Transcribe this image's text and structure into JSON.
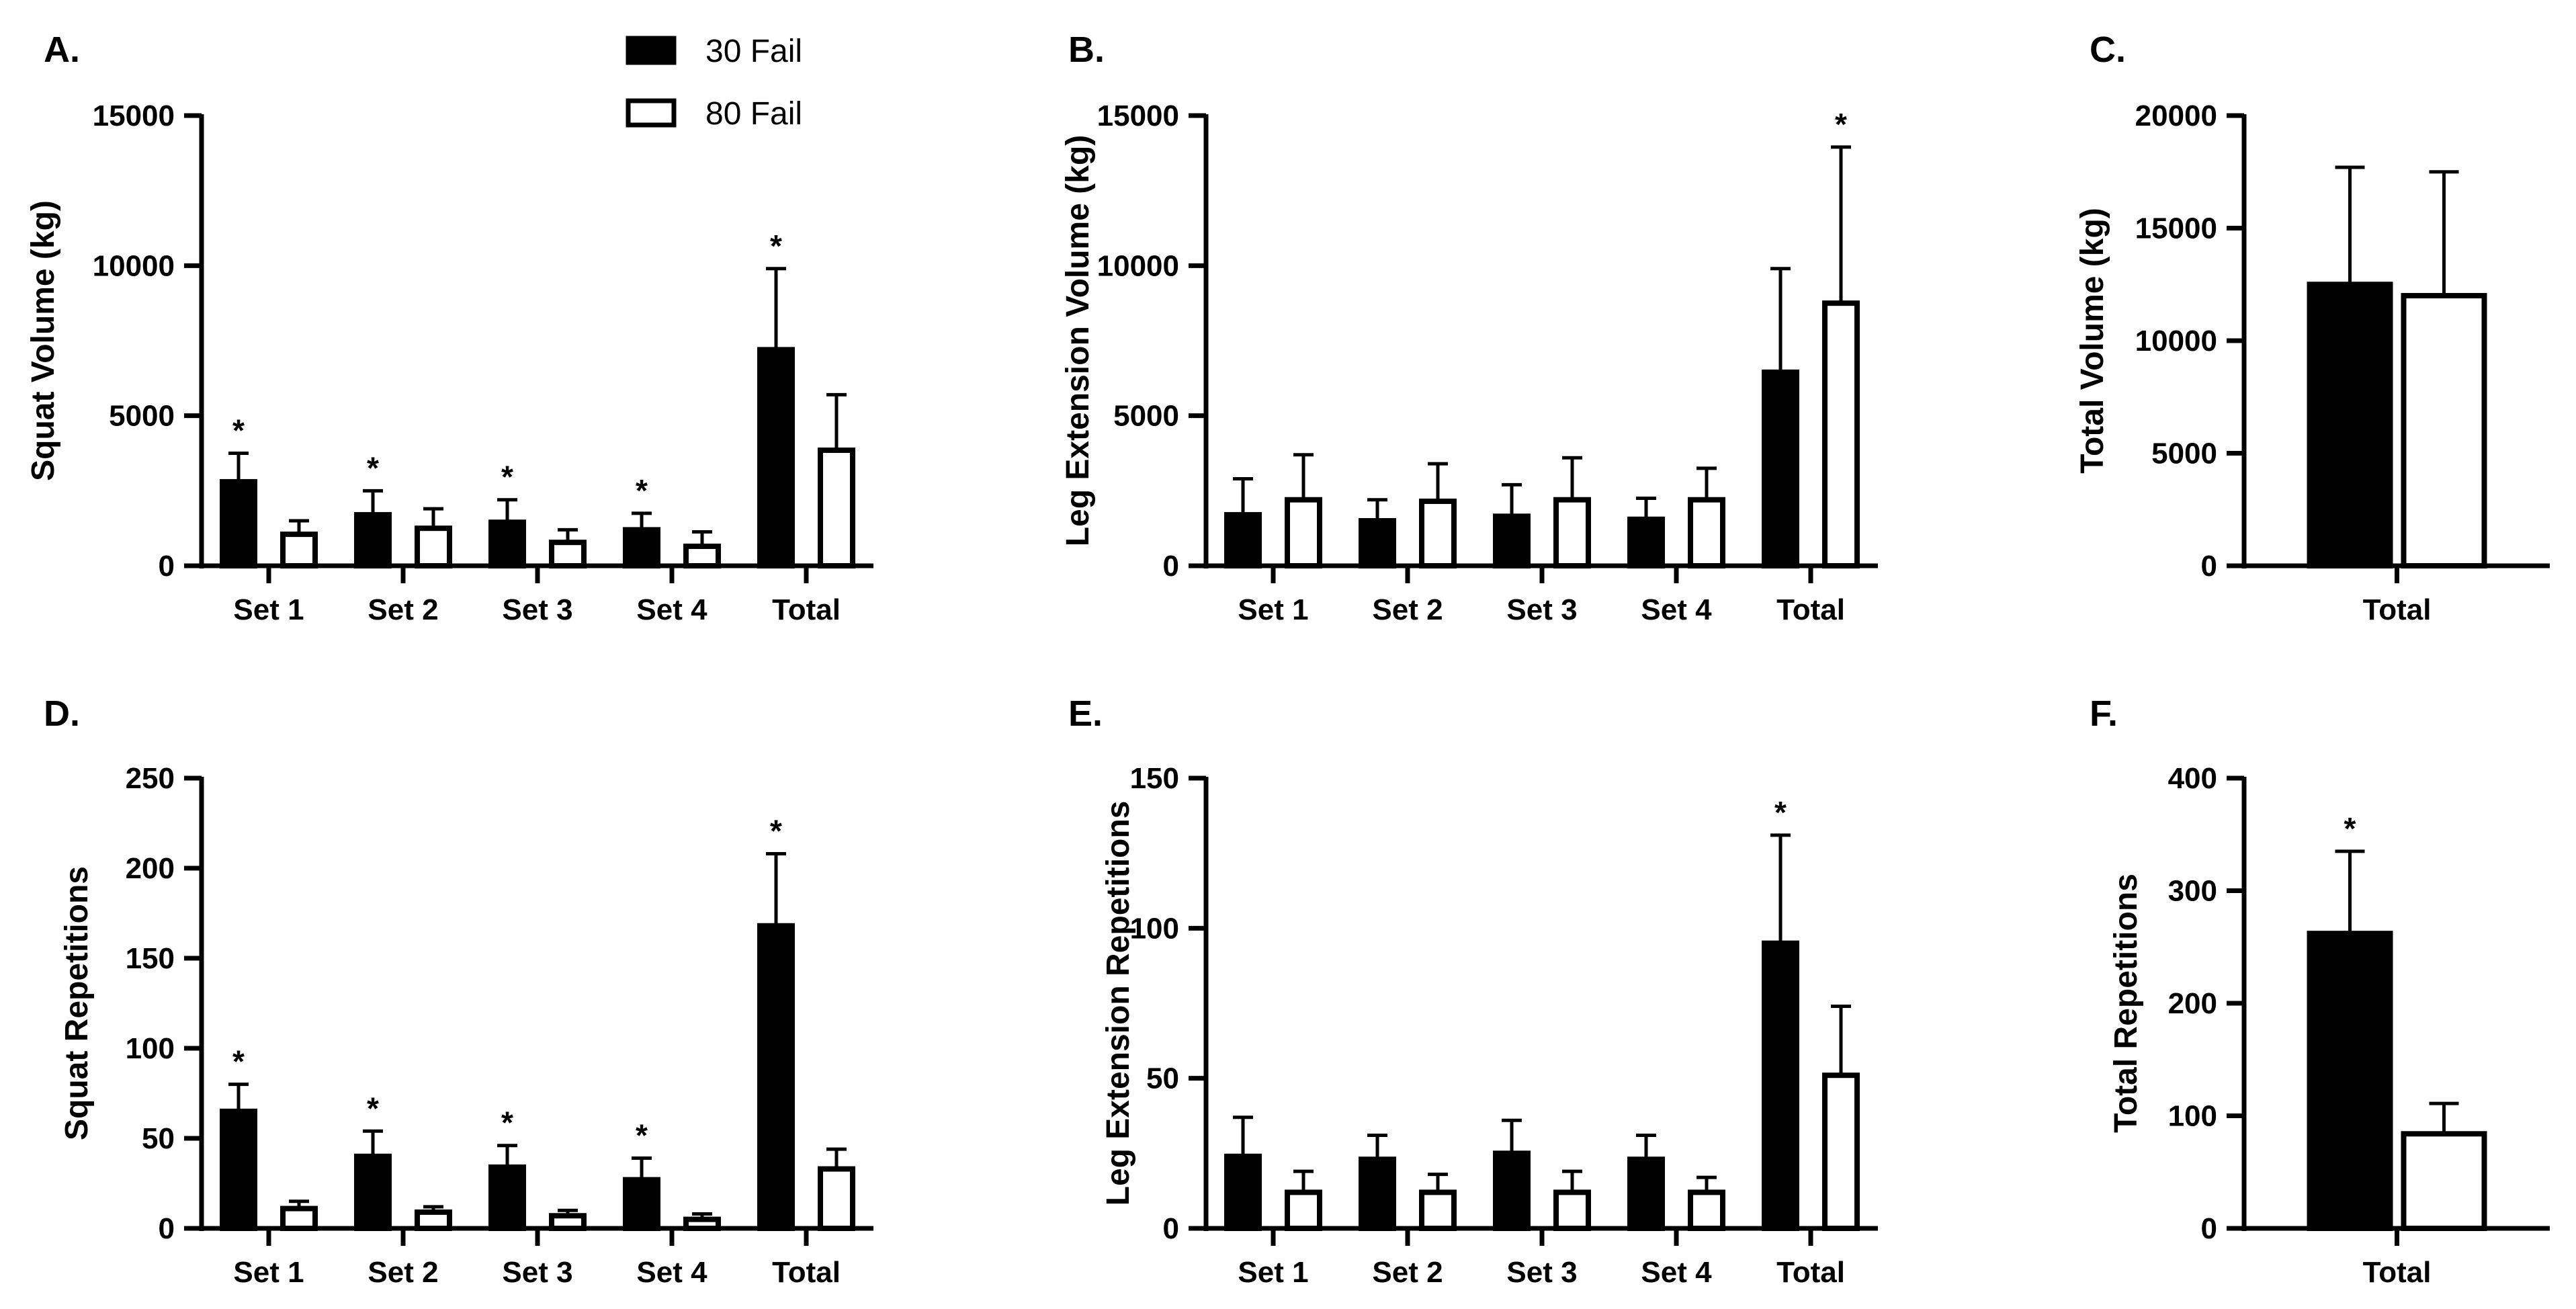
{
  "legend": {
    "entries": [
      {
        "label": "30 Fail",
        "style": "filled",
        "color": "#000000"
      },
      {
        "label": "80 Fail",
        "style": "open",
        "color": "#ffffff"
      }
    ]
  },
  "chart_data": [
    {
      "id": "A",
      "panel_label": "A.",
      "type": "bar",
      "title": "",
      "xlabel": "",
      "ylabel": "Squat Volume (kg)",
      "ylim": [
        0,
        15000
      ],
      "yticks": [
        0,
        5000,
        10000,
        15000
      ],
      "categories": [
        "Set 1",
        "Set 2",
        "Set 3",
        "Set 4",
        "Total"
      ],
      "series": [
        {
          "name": "30 Fail",
          "values": [
            2800,
            1700,
            1450,
            1200,
            7200
          ],
          "errors": [
            950,
            800,
            750,
            550,
            2700
          ]
        },
        {
          "name": "80 Fail",
          "values": [
            1050,
            1250,
            780,
            650,
            3850
          ],
          "errors": [
            450,
            650,
            420,
            480,
            1850
          ]
        }
      ],
      "significance": [
        {
          "category": 0,
          "series": 0,
          "mark": "*"
        },
        {
          "category": 1,
          "series": 0,
          "mark": "*"
        },
        {
          "category": 2,
          "series": 0,
          "mark": "*"
        },
        {
          "category": 3,
          "series": 0,
          "mark": "*"
        },
        {
          "category": 4,
          "series": 0,
          "mark": "*"
        }
      ],
      "legend": true
    },
    {
      "id": "B",
      "panel_label": "B.",
      "type": "bar",
      "title": "",
      "xlabel": "",
      "ylabel": "Leg Extension Volume (kg)",
      "ylim": [
        0,
        15000
      ],
      "yticks": [
        0,
        5000,
        10000,
        15000
      ],
      "categories": [
        "Set 1",
        "Set 2",
        "Set 3",
        "Set 4",
        "Total"
      ],
      "series": [
        {
          "name": "30 Fail",
          "values": [
            1700,
            1500,
            1650,
            1550,
            6450
          ],
          "errors": [
            1200,
            700,
            1050,
            700,
            3450
          ]
        },
        {
          "name": "80 Fail",
          "values": [
            2200,
            2150,
            2200,
            2200,
            8750
          ],
          "errors": [
            1500,
            1250,
            1400,
            1050,
            5200
          ]
        }
      ],
      "significance": [
        {
          "category": 4,
          "series": 1,
          "mark": "*"
        }
      ],
      "legend": false
    },
    {
      "id": "C",
      "panel_label": "C.",
      "type": "bar",
      "title": "",
      "xlabel": "",
      "ylabel": "Total Volume (kg)",
      "ylim": [
        0,
        20000
      ],
      "yticks": [
        0,
        5000,
        10000,
        15000,
        20000
      ],
      "categories": [
        "Total"
      ],
      "series": [
        {
          "name": "30 Fail",
          "values": [
            12500
          ],
          "errors": [
            5200
          ]
        },
        {
          "name": "80 Fail",
          "values": [
            12000
          ],
          "errors": [
            5500
          ]
        }
      ],
      "significance": [],
      "legend": false
    },
    {
      "id": "D",
      "panel_label": "D.",
      "type": "bar",
      "title": "",
      "xlabel": "",
      "ylabel": "Squat Repetitions",
      "ylim": [
        0,
        250
      ],
      "yticks": [
        0,
        50,
        100,
        150,
        200,
        250
      ],
      "categories": [
        "Set 1",
        "Set 2",
        "Set 3",
        "Set 4",
        "Total"
      ],
      "series": [
        {
          "name": "30 Fail",
          "values": [
            65,
            40,
            34,
            27,
            168
          ],
          "errors": [
            15,
            14,
            12,
            12,
            40
          ]
        },
        {
          "name": "80 Fail",
          "values": [
            11,
            9,
            7,
            5,
            33
          ],
          "errors": [
            4,
            3,
            3,
            3,
            11
          ]
        }
      ],
      "significance": [
        {
          "category": 0,
          "series": 0,
          "mark": "*"
        },
        {
          "category": 1,
          "series": 0,
          "mark": "*"
        },
        {
          "category": 2,
          "series": 0,
          "mark": "*"
        },
        {
          "category": 3,
          "series": 0,
          "mark": "*"
        },
        {
          "category": 4,
          "series": 0,
          "mark": "*"
        }
      ],
      "legend": false
    },
    {
      "id": "E",
      "panel_label": "E.",
      "type": "bar",
      "title": "",
      "xlabel": "",
      "ylabel": "Leg Extension Repetitions",
      "ylim": [
        0,
        150
      ],
      "yticks": [
        0,
        50,
        100,
        150
      ],
      "categories": [
        "Set 1",
        "Set 2",
        "Set 3",
        "Set 4",
        "Total"
      ],
      "series": [
        {
          "name": "30 Fail",
          "values": [
            24,
            23,
            25,
            23,
            95
          ],
          "errors": [
            13,
            8,
            11,
            8,
            36
          ]
        },
        {
          "name": "80 Fail",
          "values": [
            12,
            12,
            12,
            12,
            51
          ],
          "errors": [
            7,
            6,
            7,
            5,
            23
          ]
        }
      ],
      "significance": [
        {
          "category": 4,
          "series": 0,
          "mark": "*"
        }
      ],
      "legend": false
    },
    {
      "id": "F",
      "panel_label": "F.",
      "type": "bar",
      "title": "",
      "xlabel": "",
      "ylabel": "Total Repetitions",
      "ylim": [
        0,
        400
      ],
      "yticks": [
        0,
        100,
        200,
        300,
        400
      ],
      "categories": [
        "Total"
      ],
      "series": [
        {
          "name": "30 Fail",
          "values": [
            262
          ],
          "errors": [
            73
          ]
        },
        {
          "name": "80 Fail",
          "values": [
            84
          ],
          "errors": [
            27
          ]
        }
      ],
      "significance": [
        {
          "category": 0,
          "series": 0,
          "mark": "*"
        }
      ],
      "legend": false
    }
  ]
}
